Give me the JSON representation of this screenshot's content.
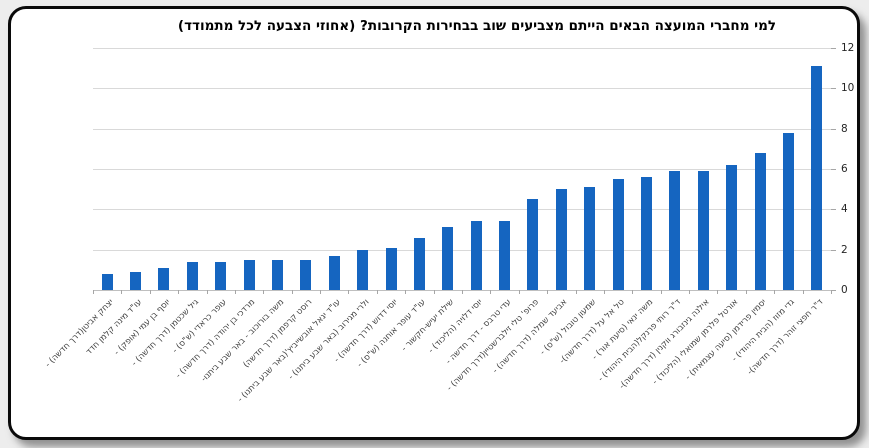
{
  "chart_data": {
    "type": "bar",
    "title": "למי מחברי המועצה הבאים הייתם מצביעים שוב בבחירות הקרובות? (אחוזי הצבעה לכל מתמודד)",
    "direction": "rtl",
    "grid": true,
    "legend": "none",
    "y_axis_side": "right",
    "ylim": [
      0,
      12
    ],
    "y_ticks": [
      0,
      2,
      4,
      6,
      8,
      10,
      12
    ],
    "bar_color": "#1565c0",
    "gridline_color": "#d9d9d9",
    "categories": [
      "יצחק אביטן(דרך חדשה) -",
      "עו\"ד מינה קלמן חדד",
      "יוסף בן עמי (אופק) -",
      "גיל שכטמן (דרך חדשה) -",
      "עופר כראדי (ש\"ס) -",
      "מרדכי בן יהודה (דרך חדשה) -",
      "משה בורוכוב - באר שבע ביתנו-",
      "רוסט קרפמן (דרך חדשה)",
      "עו\"ד יגאל אובשייביץ'(באר שבע ביתנו) -",
      "ולרי מגירוב (באר שבע ביתנו) -",
      "יוסי דדוש (דרך חדשה) -",
      "עו\"ד עופר אוחנה (ש\"ס) -",
      "שילת יעיש-חקשור -",
      "יוסי דלויה (הליכוד) -",
      "עדי טרבס - דרך חדשה -",
      "פרופ' טלי זילברשטיין(דרך חדשה) -",
      "אביעד שמלה (דרך חדשה) -",
      "שמעון טובול (ש\"ס) -",
      "טל אל על (דרך חדשה)-",
      "משה ינאי (סיעת אור) -",
      "ד\"ר רותי פרנקל(הבית היהודי) -",
      "אילנה גינזבורג ווקנין (דרך חדשה)-",
      "אורטל פלרמן שמואלי (הליכוד) -",
      "יסמין פרידמן (סיעה עצמאית) -",
      "גדי מזוז (הבית היהודי) -",
      "ד\"ר חפצי זוהר (דרך חדשה)-"
    ],
    "values": [
      0.8,
      0.9,
      1.1,
      1.4,
      1.4,
      1.5,
      1.5,
      1.5,
      1.7,
      2.0,
      2.1,
      2.6,
      3.1,
      3.4,
      3.4,
      4.5,
      5.0,
      5.1,
      5.5,
      5.6,
      5.9,
      5.9,
      6.2,
      6.8,
      7.8,
      11.1
    ]
  }
}
